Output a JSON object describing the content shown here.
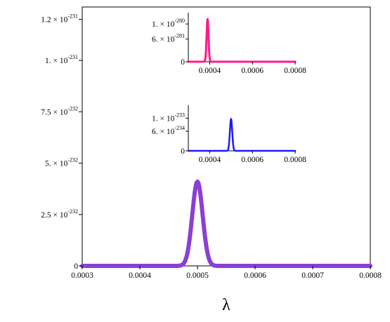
{
  "chart_data": [
    {
      "id": "main",
      "type": "line",
      "xlabel": "λ",
      "ylabel": "",
      "xlim": [
        0.0003,
        0.0008
      ],
      "ylim": [
        0,
        1.26e-231
      ],
      "x_ticks": [
        {
          "value": 0.0003,
          "label": "0.0003"
        },
        {
          "value": 0.0004,
          "label": "0.0004"
        },
        {
          "value": 0.0005,
          "label": "0.0005"
        },
        {
          "value": 0.0006,
          "label": "0.0006"
        },
        {
          "value": 0.0007,
          "label": "0.0007"
        },
        {
          "value": 0.0008,
          "label": "0.0008"
        }
      ],
      "y_ticks": [
        {
          "value": 0,
          "mantissa": "0",
          "exponent": ""
        },
        {
          "value": 2.5e-232,
          "mantissa": "2.5 × 10",
          "exponent": "-232"
        },
        {
          "value": 5e-232,
          "mantissa": "5. × 10",
          "exponent": "-232"
        },
        {
          "value": 7.5e-232,
          "mantissa": "7.5 × 10",
          "exponent": "-232"
        },
        {
          "value": 1e-231,
          "mantissa": "1. × 10",
          "exponent": "-231"
        },
        {
          "value": 1.2e-231,
          "mantissa": "1.2 × 10",
          "exponent": "-231"
        }
      ],
      "series": [
        {
          "color": "#8a3fd6",
          "peak_x": 0.0005,
          "peak_y": 4.1e-232,
          "width": 9e-06
        }
      ]
    },
    {
      "id": "inset-top",
      "type": "line",
      "xlim": [
        0.0003,
        0.0008
      ],
      "ylim": [
        0,
        1.3e-280
      ],
      "x_ticks": [
        {
          "value": 0.0004,
          "label": "0.0004"
        },
        {
          "value": 0.0006,
          "label": "0.0006"
        },
        {
          "value": 0.0008,
          "label": "0.0008"
        }
      ],
      "y_ticks": [
        {
          "value": 0,
          "mantissa": "0",
          "exponent": ""
        },
        {
          "value": 6e-281,
          "mantissa": "6. × 10",
          "exponent": "-281"
        },
        {
          "value": 1e-280,
          "mantissa": "1. × 10",
          "exponent": "-280"
        }
      ],
      "series": [
        {
          "color": "#ff1a8c",
          "peak_x": 0.00039,
          "peak_y": 1.13e-280,
          "width": 4.5e-06
        }
      ]
    },
    {
      "id": "inset-bottom",
      "type": "line",
      "xlim": [
        0.0003,
        0.0008
      ],
      "ylim": [
        0,
        1.4e-233
      ],
      "x_ticks": [
        {
          "value": 0.0004,
          "label": "0.0004"
        },
        {
          "value": 0.0006,
          "label": "0.0006"
        },
        {
          "value": 0.0008,
          "label": "0.0008"
        }
      ],
      "y_ticks": [
        {
          "value": 0,
          "mantissa": "0",
          "exponent": ""
        },
        {
          "value": 6e-234,
          "mantissa": "6. × 10",
          "exponent": "-234"
        },
        {
          "value": 1e-233,
          "mantissa": "1. × 10",
          "exponent": "-233"
        }
      ],
      "series": [
        {
          "color": "#1a1aff",
          "peak_x": 0.0005,
          "peak_y": 9.8e-234,
          "width": 5.5e-06
        }
      ]
    }
  ]
}
